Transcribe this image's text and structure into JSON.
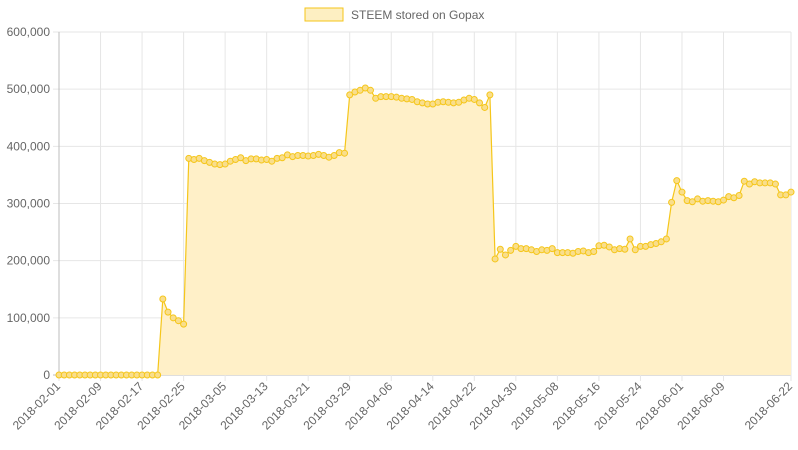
{
  "chart_data": {
    "type": "line",
    "title": "",
    "xlabel": "",
    "ylabel": "",
    "ylim": [
      0,
      600000
    ],
    "y_ticks": [
      "0",
      "100,000",
      "200,000",
      "300,000",
      "400,000",
      "500,000",
      "600,000"
    ],
    "x_tick_labels": [
      "2018-02-01",
      "2018-02-09",
      "2018-02-17",
      "2018-02-25",
      "2018-03-05",
      "2018-03-13",
      "2018-03-21",
      "2018-03-29",
      "2018-04-06",
      "2018-04-14",
      "2018-04-22",
      "2018-04-30",
      "2018-05-08",
      "2018-05-16",
      "2018-05-24",
      "2018-06-01",
      "2018-06-09",
      "2018-06-22"
    ],
    "x_range": [
      "2018-02-01",
      "2018-06-22"
    ],
    "grid": true,
    "legend_position": "top-center",
    "colors": {
      "line": "#f5c61a",
      "fill": "#fff0c8",
      "point_fill": "#f9de8c",
      "legend_fill": "#fdefc2"
    },
    "series": [
      {
        "name": "STEEM stored on Gopax",
        "points": [
          [
            "2018-02-01",
            0
          ],
          [
            "2018-02-02",
            0
          ],
          [
            "2018-02-03",
            0
          ],
          [
            "2018-02-04",
            0
          ],
          [
            "2018-02-05",
            0
          ],
          [
            "2018-02-06",
            0
          ],
          [
            "2018-02-07",
            0
          ],
          [
            "2018-02-08",
            0
          ],
          [
            "2018-02-09",
            0
          ],
          [
            "2018-02-10",
            0
          ],
          [
            "2018-02-11",
            0
          ],
          [
            "2018-02-12",
            0
          ],
          [
            "2018-02-13",
            0
          ],
          [
            "2018-02-14",
            0
          ],
          [
            "2018-02-15",
            0
          ],
          [
            "2018-02-16",
            0
          ],
          [
            "2018-02-17",
            0
          ],
          [
            "2018-02-18",
            0
          ],
          [
            "2018-02-19",
            0
          ],
          [
            "2018-02-20",
            0
          ],
          [
            "2018-02-21",
            133000
          ],
          [
            "2018-02-22",
            110000
          ],
          [
            "2018-02-23",
            100000
          ],
          [
            "2018-02-24",
            95000
          ],
          [
            "2018-02-25",
            89000
          ],
          [
            "2018-02-26",
            379000
          ],
          [
            "2018-02-27",
            377000
          ],
          [
            "2018-02-28",
            379000
          ],
          [
            "2018-03-01",
            375000
          ],
          [
            "2018-03-02",
            372000
          ],
          [
            "2018-03-03",
            369000
          ],
          [
            "2018-03-04",
            368000
          ],
          [
            "2018-03-05",
            369000
          ],
          [
            "2018-03-06",
            374000
          ],
          [
            "2018-03-07",
            377000
          ],
          [
            "2018-03-08",
            380000
          ],
          [
            "2018-03-09",
            375000
          ],
          [
            "2018-03-10",
            378000
          ],
          [
            "2018-03-11",
            378000
          ],
          [
            "2018-03-12",
            376000
          ],
          [
            "2018-03-13",
            377000
          ],
          [
            "2018-03-14",
            374000
          ],
          [
            "2018-03-15",
            379000
          ],
          [
            "2018-03-16",
            380000
          ],
          [
            "2018-03-17",
            385000
          ],
          [
            "2018-03-18",
            382000
          ],
          [
            "2018-03-19",
            384000
          ],
          [
            "2018-03-20",
            384000
          ],
          [
            "2018-03-21",
            383000
          ],
          [
            "2018-03-22",
            384000
          ],
          [
            "2018-03-23",
            386000
          ],
          [
            "2018-03-24",
            384000
          ],
          [
            "2018-03-25",
            381000
          ],
          [
            "2018-03-26",
            384000
          ],
          [
            "2018-03-27",
            389000
          ],
          [
            "2018-03-28",
            388000
          ],
          [
            "2018-03-29",
            490000
          ],
          [
            "2018-03-30",
            495000
          ],
          [
            "2018-03-31",
            498000
          ],
          [
            "2018-04-01",
            502000
          ],
          [
            "2018-04-02",
            498000
          ],
          [
            "2018-04-03",
            484000
          ],
          [
            "2018-04-04",
            487000
          ],
          [
            "2018-04-05",
            487000
          ],
          [
            "2018-04-06",
            487000
          ],
          [
            "2018-04-07",
            486000
          ],
          [
            "2018-04-08",
            484000
          ],
          [
            "2018-04-09",
            483000
          ],
          [
            "2018-04-10",
            482000
          ],
          [
            "2018-04-11",
            478000
          ],
          [
            "2018-04-12",
            476000
          ],
          [
            "2018-04-13",
            474000
          ],
          [
            "2018-04-14",
            474000
          ],
          [
            "2018-04-15",
            477000
          ],
          [
            "2018-04-16",
            478000
          ],
          [
            "2018-04-17",
            477000
          ],
          [
            "2018-04-18",
            476000
          ],
          [
            "2018-04-19",
            477000
          ],
          [
            "2018-04-20",
            481000
          ],
          [
            "2018-04-21",
            484000
          ],
          [
            "2018-04-22",
            482000
          ],
          [
            "2018-04-23",
            476000
          ],
          [
            "2018-04-24",
            468000
          ],
          [
            "2018-04-25",
            490000
          ],
          [
            "2018-04-26",
            203000
          ],
          [
            "2018-04-27",
            220000
          ],
          [
            "2018-04-28",
            210000
          ],
          [
            "2018-04-29",
            218000
          ],
          [
            "2018-04-30",
            225000
          ],
          [
            "2018-05-01",
            221000
          ],
          [
            "2018-05-02",
            221000
          ],
          [
            "2018-05-03",
            219000
          ],
          [
            "2018-05-04",
            216000
          ],
          [
            "2018-05-05",
            219000
          ],
          [
            "2018-05-06",
            218000
          ],
          [
            "2018-05-07",
            221000
          ],
          [
            "2018-05-08",
            214000
          ],
          [
            "2018-05-09",
            214000
          ],
          [
            "2018-05-10",
            214000
          ],
          [
            "2018-05-11",
            213000
          ],
          [
            "2018-05-12",
            216000
          ],
          [
            "2018-05-13",
            217000
          ],
          [
            "2018-05-14",
            214000
          ],
          [
            "2018-05-15",
            216000
          ],
          [
            "2018-05-16",
            226000
          ],
          [
            "2018-05-17",
            227000
          ],
          [
            "2018-05-18",
            224000
          ],
          [
            "2018-05-19",
            219000
          ],
          [
            "2018-05-20",
            221000
          ],
          [
            "2018-05-21",
            220000
          ],
          [
            "2018-05-22",
            238000
          ],
          [
            "2018-05-23",
            219000
          ],
          [
            "2018-05-24",
            225000
          ],
          [
            "2018-05-25",
            225000
          ],
          [
            "2018-05-26",
            228000
          ],
          [
            "2018-05-27",
            230000
          ],
          [
            "2018-05-28",
            233000
          ],
          [
            "2018-05-29",
            238000
          ],
          [
            "2018-05-30",
            302000
          ],
          [
            "2018-05-31",
            340000
          ],
          [
            "2018-06-01",
            320000
          ],
          [
            "2018-06-02",
            305000
          ],
          [
            "2018-06-03",
            303000
          ],
          [
            "2018-06-04",
            308000
          ],
          [
            "2018-06-05",
            304000
          ],
          [
            "2018-06-06",
            305000
          ],
          [
            "2018-06-07",
            304000
          ],
          [
            "2018-06-08",
            303000
          ],
          [
            "2018-06-09",
            306000
          ],
          [
            "2018-06-10",
            312000
          ],
          [
            "2018-06-11",
            310000
          ],
          [
            "2018-06-12",
            314000
          ],
          [
            "2018-06-13",
            339000
          ],
          [
            "2018-06-14",
            334000
          ],
          [
            "2018-06-15",
            338000
          ],
          [
            "2018-06-16",
            336000
          ],
          [
            "2018-06-17",
            336000
          ],
          [
            "2018-06-18",
            336000
          ],
          [
            "2018-06-19",
            334000
          ],
          [
            "2018-06-20",
            315000
          ],
          [
            "2018-06-21",
            315000
          ],
          [
            "2018-06-22",
            320000
          ]
        ]
      }
    ]
  }
}
